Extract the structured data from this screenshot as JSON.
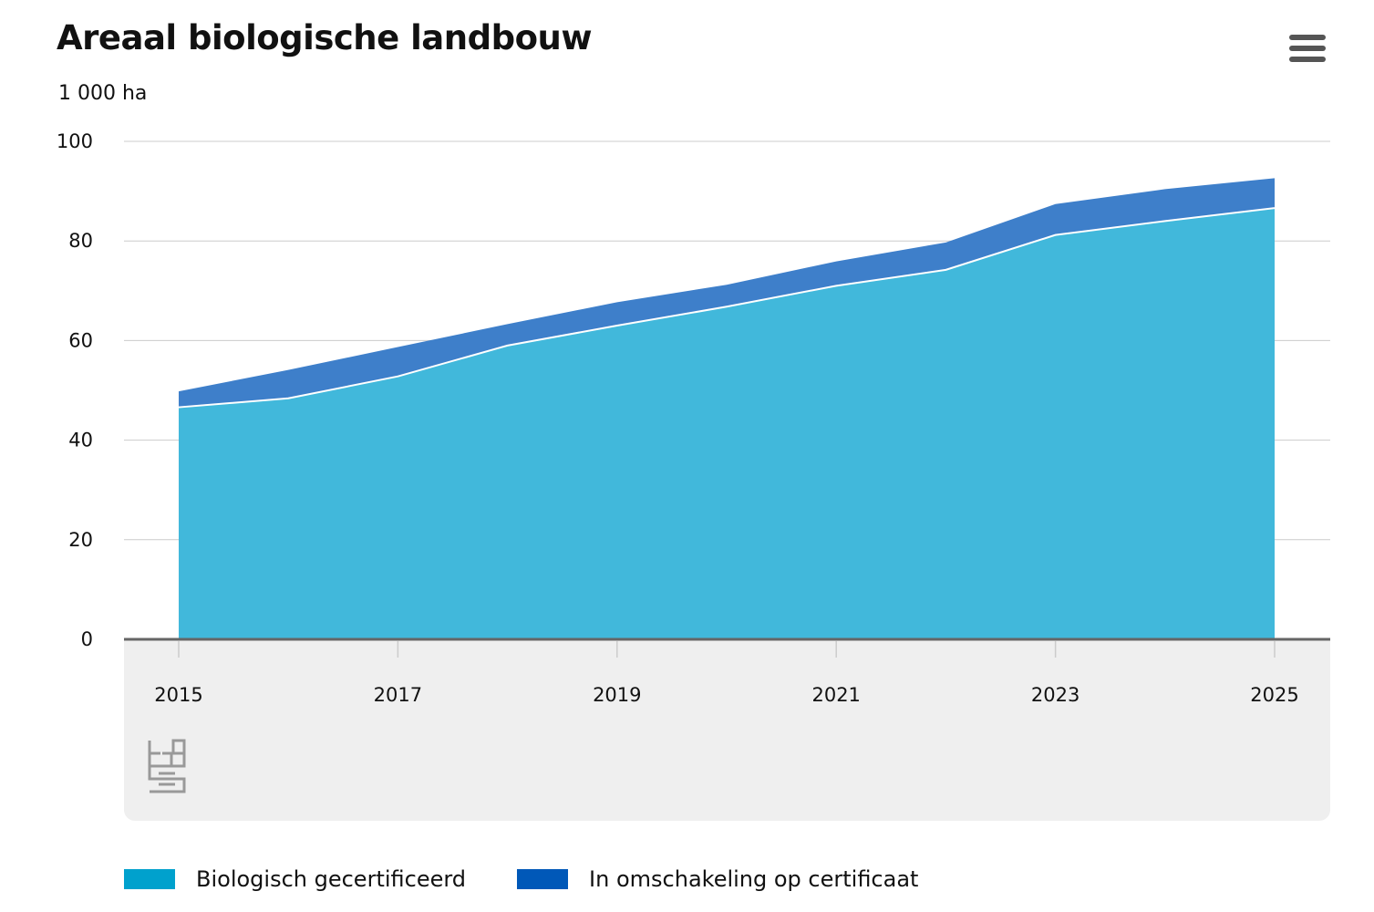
{
  "chart_data": {
    "type": "area",
    "stacked": true,
    "title": "Areaal biologische landbouw",
    "ylabel": "1 000 ha",
    "x": [
      2015,
      2016,
      2017,
      2018,
      2019,
      2020,
      2021,
      2022,
      2023,
      2024,
      2025
    ],
    "x_tick_labels": [
      "2015",
      "2017",
      "2019",
      "2021",
      "2023",
      "2025"
    ],
    "y_tick_labels": [
      "0",
      "20",
      "40",
      "60",
      "80",
      "100"
    ],
    "ylim": [
      0,
      100
    ],
    "series": [
      {
        "name": "Biologisch gecertificeerd",
        "color": "#00a1cd",
        "values": [
          46.6,
          48.4,
          52.8,
          59.0,
          63.0,
          66.8,
          71.0,
          74.2,
          81.2,
          84.0,
          86.6
        ]
      },
      {
        "name": "In omschakeling op certificaat",
        "color": "#0058b8",
        "values": [
          3.2,
          5.7,
          5.9,
          4.3,
          4.7,
          4.4,
          4.9,
          5.5,
          6.2,
          6.4,
          6.0
        ]
      }
    ],
    "grid": true,
    "legend_position": "bottom-left"
  },
  "colors": {
    "series_1": "#00a1cd",
    "series_2": "#0058b8",
    "series_1_fill": "#41b8db",
    "series_2_fill": "#3e7fca",
    "gridline": "#cccccc",
    "axis": "#666666",
    "x_axis_band": "#efefef",
    "logo": "#999999"
  },
  "icons": {
    "menu": "hamburger-menu-icon",
    "logo": "cbs-logo-icon"
  }
}
